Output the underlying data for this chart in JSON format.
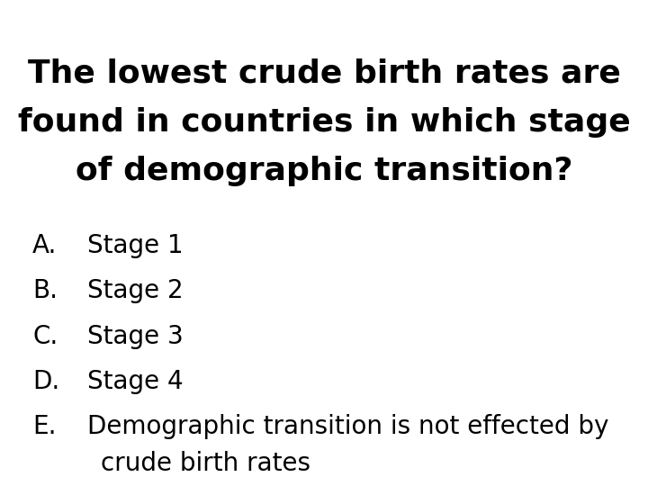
{
  "title_lines": [
    "The lowest crude birth rates are",
    "found in countries in which stage",
    "of demographic transition?"
  ],
  "options": [
    {
      "label": "A.",
      "text": "Stage 1"
    },
    {
      "label": "B.",
      "text": "Stage 2"
    },
    {
      "label": "C.",
      "text": "Stage 3"
    },
    {
      "label": "D.",
      "text": "Stage 4"
    },
    {
      "label": "E.",
      "text1": "Demographic transition is not effected by",
      "text2": "crude birth rates"
    }
  ],
  "background_color": "#ffffff",
  "text_color": "#000000",
  "title_fontsize": 26,
  "option_fontsize": 20,
  "title_fontweight": "bold",
  "option_fontweight": "normal"
}
